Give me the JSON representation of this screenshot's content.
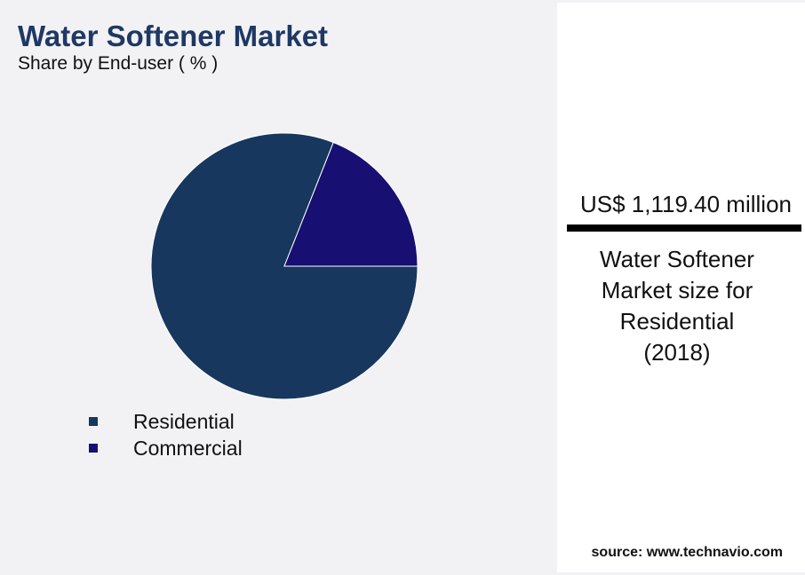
{
  "chart_data": {
    "type": "pie",
    "title": "Water Softener Market",
    "subtitle": "Share by End-user ( % )",
    "categories": [
      "Residential",
      "Commercial"
    ],
    "values": [
      81,
      19
    ],
    "colors": [
      "#17375e",
      "#170f72"
    ]
  },
  "panel": {
    "value": "US$ 1,119.40 million",
    "label": "Water Softener Market size for Residential (2018)"
  },
  "source": "source: www.technavio.com"
}
